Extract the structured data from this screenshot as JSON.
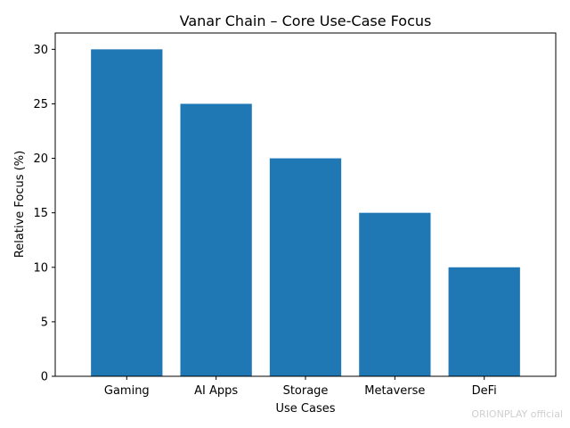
{
  "chart_data": {
    "type": "bar",
    "title": "Vanar Chain – Core Use-Case Focus",
    "xlabel": "Use Cases",
    "ylabel": "Relative Focus (%)",
    "categories": [
      "Gaming",
      "AI Apps",
      "Storage",
      "Metaverse",
      "DeFi"
    ],
    "values": [
      30,
      25,
      20,
      15,
      10
    ],
    "ylim": [
      0,
      31.5
    ],
    "yticks": [
      0,
      5,
      10,
      15,
      20,
      25,
      30
    ],
    "bar_color": "#1f77b4",
    "grid": false,
    "legend": "none"
  },
  "watermark": "ORIONPLAY official"
}
